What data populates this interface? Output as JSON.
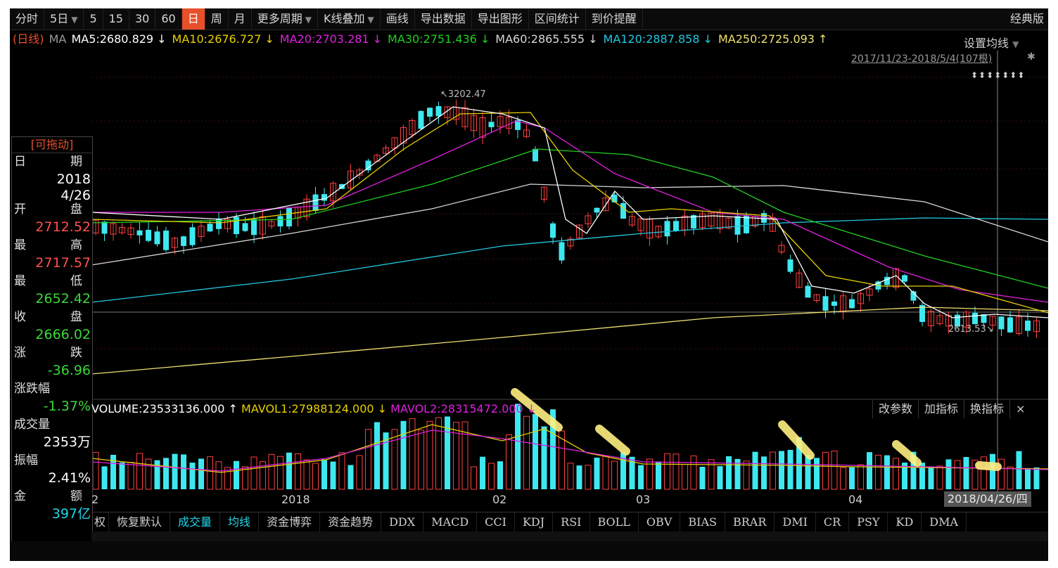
{
  "toolbar": {
    "items": [
      "分时",
      "5日",
      "5",
      "15",
      "30",
      "60",
      "日",
      "周",
      "月",
      "更多周期",
      "K线叠加",
      "画线",
      "导出数据",
      "导出图形",
      "区间统计",
      "到价提醒"
    ],
    "active": "日",
    "right": "经典版"
  },
  "ma_line": {
    "prefix": "(日线)",
    "label": "MA",
    "entries": [
      {
        "text": "MA5:2680.829",
        "arrow": "↓",
        "color": "#ffffff"
      },
      {
        "text": "MA10:2676.727",
        "arrow": "↓",
        "color": "#e8d000"
      },
      {
        "text": "MA20:2703.281",
        "arrow": "↓",
        "color": "#e020e0"
      },
      {
        "text": "MA30:2751.436",
        "arrow": "↓",
        "color": "#20d020"
      },
      {
        "text": "MA60:2865.555",
        "arrow": "↓",
        "color": "#d8d8d8"
      },
      {
        "text": "MA120:2887.858",
        "arrow": "↓",
        "color": "#22c8e0"
      },
      {
        "text": "MA250:2725.093",
        "arrow": "↑",
        "color": "#f0e070"
      }
    ]
  },
  "set_ma": "设置均线",
  "date_range": "2017/11/23-2018/5/4(107根)",
  "arrows": "⬍⬍⬍⬍⬍⬍⬍",
  "price_labels": {
    "high": "3202.47",
    "low": "2613.53"
  },
  "info_panel": {
    "title": "[可拖动]",
    "date_label": [
      "日",
      "期"
    ],
    "year": "2018",
    "md": "4/26",
    "open_label": [
      "开",
      "盘"
    ],
    "open": "2712.52",
    "high_label": [
      "最",
      "高"
    ],
    "high": "2717.57",
    "low_label": [
      "最",
      "低"
    ],
    "low": "2652.42",
    "close_label": [
      "收",
      "盘"
    ],
    "close": "2666.02",
    "chg_label": [
      "涨",
      "跌"
    ],
    "chg": "-36.96",
    "pct_label": "涨跌幅",
    "pct": "-1.37%",
    "vol_label": "成交量",
    "vol": "2353万",
    "amp_label": "振幅",
    "amp": "2.41%",
    "amt_label": [
      "金",
      "额"
    ],
    "amt": "397亿"
  },
  "volume_line": {
    "vol": "VOLUME:23533136.000",
    "vol_arrow": "↑",
    "mavol1": "MAVOL1:27988124.000",
    "mavol1_arrow": "↓",
    "mavol2": "MAVOL2:28315472.000",
    "mavol2_arrow": "↓"
  },
  "volume_buttons": [
    "改参数",
    "加指标",
    "换指标",
    "×"
  ],
  "x_labels": [
    "2",
    "2018",
    "02",
    "03",
    "04"
  ],
  "date_badge": "2018/04/26/四",
  "tabs": [
    "恢复默认",
    "成交量",
    "均线",
    "资金博弈",
    "资金趋势",
    "DDX",
    "MACD",
    "CCI",
    "KDJ",
    "RSI",
    "BOLL",
    "OBV",
    "BIAS",
    "BRAR",
    "DMI",
    "CR",
    "PSY",
    "KD",
    "DMA"
  ],
  "tabs_highlight": [
    "成交量",
    "均线"
  ],
  "tab_prefix": "权",
  "colors": {
    "up": "#ff4040",
    "down": "#3ee8f0",
    "ma5": "#ffffff",
    "ma10": "#e8d000",
    "ma20": "#e020e0",
    "ma30": "#20d020",
    "ma60": "#d8d8d8",
    "ma120": "#22c8e0",
    "ma250": "#f0e070",
    "highlighter": "#fff080"
  }
}
